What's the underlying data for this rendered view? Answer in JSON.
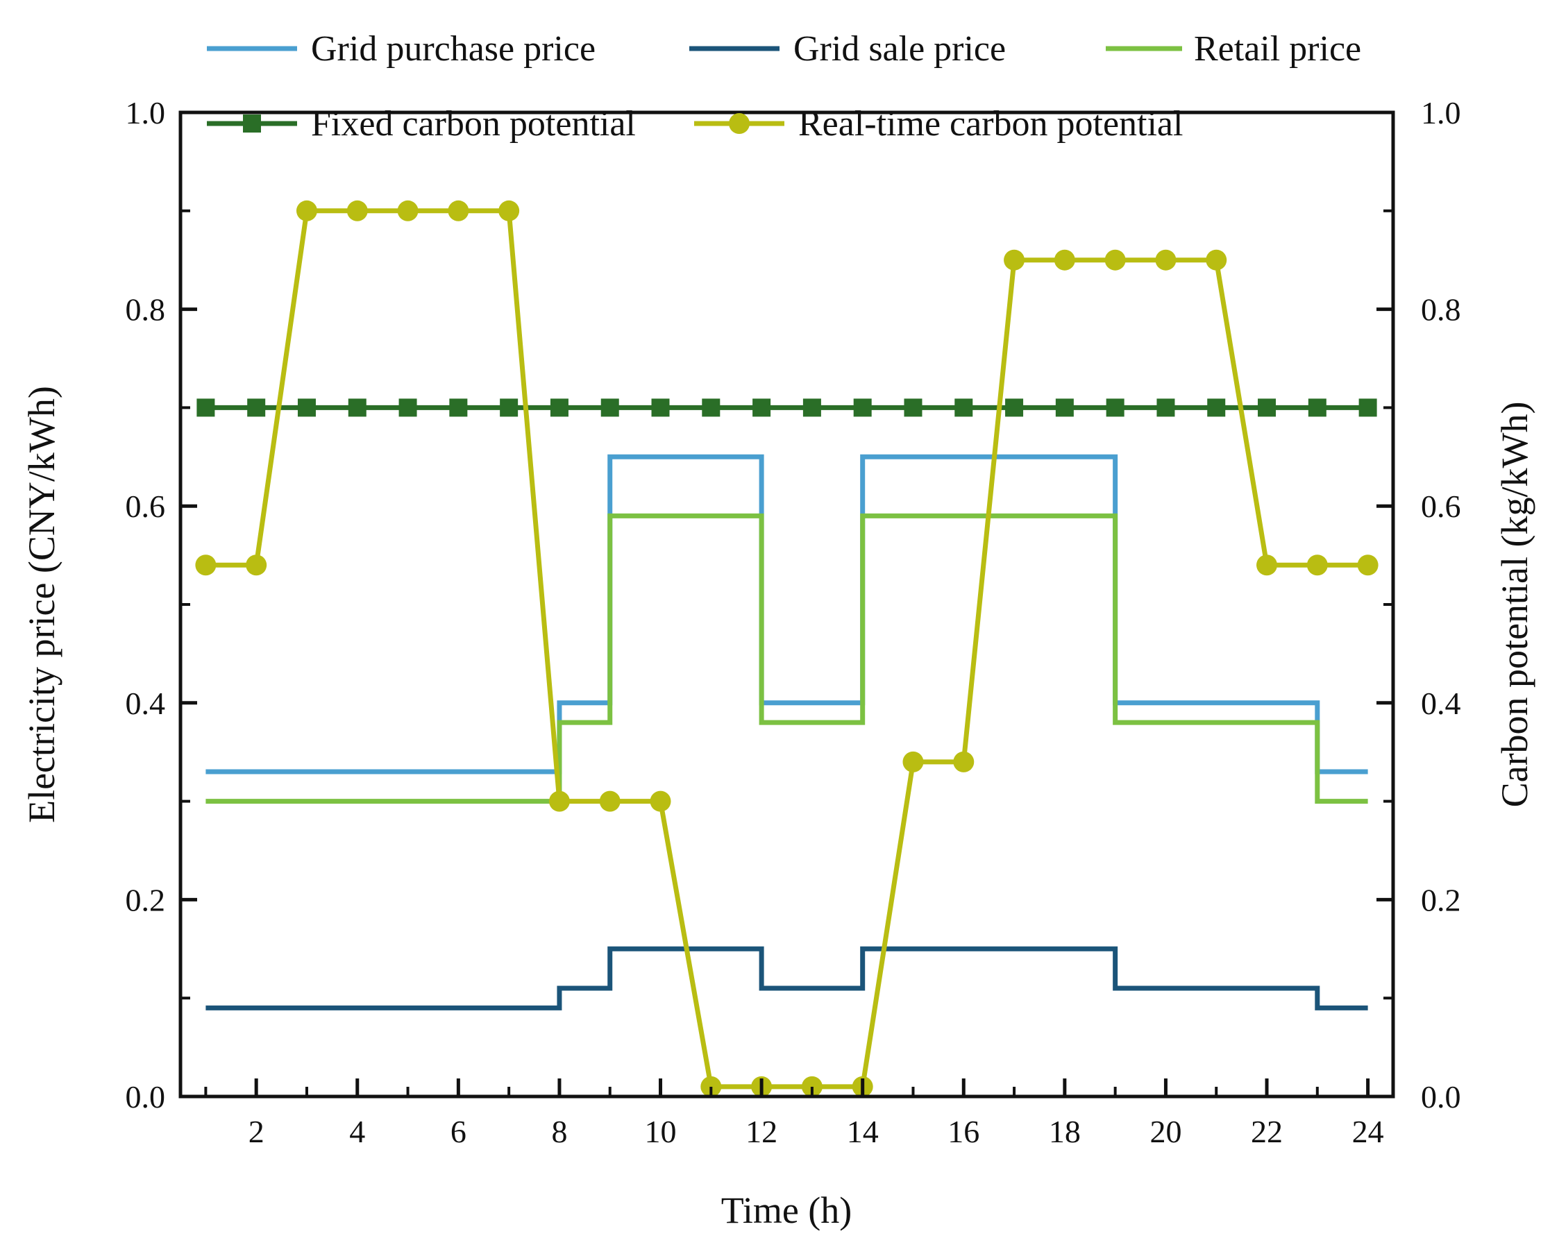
{
  "chart_data": {
    "type": "line",
    "title": "",
    "xlabel": "Time (h)",
    "ylabel_left": "Electricity price (CNY/kWh)",
    "ylabel_right": "Carbon potential (kg/kWh)",
    "x": [
      1,
      2,
      3,
      4,
      5,
      6,
      7,
      8,
      9,
      10,
      11,
      12,
      13,
      14,
      15,
      16,
      17,
      18,
      19,
      20,
      21,
      22,
      23,
      24
    ],
    "xlim": [
      0.5,
      24.5
    ],
    "xticks": [
      2,
      4,
      6,
      8,
      10,
      12,
      14,
      16,
      18,
      20,
      22,
      24
    ],
    "ylim_left": [
      0.0,
      1.0
    ],
    "ylim_right": [
      0.0,
      1.0
    ],
    "yticks": [
      0.0,
      0.2,
      0.4,
      0.6,
      0.8,
      1.0
    ],
    "ytick_labels": [
      "0.0",
      "0.2",
      "0.4",
      "0.6",
      "0.8",
      "1.0"
    ],
    "legend_position": "top",
    "series": [
      {
        "name": "Grid purchase price",
        "axis": "left",
        "style": "step",
        "marker": "none",
        "color": "#4a9fd0",
        "values": [
          0.33,
          0.33,
          0.33,
          0.33,
          0.33,
          0.33,
          0.33,
          0.4,
          0.65,
          0.65,
          0.65,
          0.4,
          0.4,
          0.65,
          0.65,
          0.65,
          0.65,
          0.65,
          0.4,
          0.4,
          0.4,
          0.4,
          0.33,
          0.33
        ]
      },
      {
        "name": "Grid sale price",
        "axis": "left",
        "style": "step",
        "marker": "none",
        "color": "#1b5479",
        "values": [
          0.09,
          0.09,
          0.09,
          0.09,
          0.09,
          0.09,
          0.09,
          0.11,
          0.15,
          0.15,
          0.15,
          0.11,
          0.11,
          0.15,
          0.15,
          0.15,
          0.15,
          0.15,
          0.11,
          0.11,
          0.11,
          0.11,
          0.09,
          0.09
        ]
      },
      {
        "name": "Retail price",
        "axis": "left",
        "style": "step",
        "marker": "none",
        "color": "#7cc142",
        "values": [
          0.3,
          0.3,
          0.3,
          0.3,
          0.3,
          0.3,
          0.3,
          0.38,
          0.59,
          0.59,
          0.59,
          0.38,
          0.38,
          0.59,
          0.59,
          0.59,
          0.59,
          0.59,
          0.38,
          0.38,
          0.38,
          0.38,
          0.3,
          0.3
        ]
      },
      {
        "name": "Fixed carbon potential",
        "axis": "right",
        "style": "line",
        "marker": "square",
        "color": "#2a6e27",
        "values": [
          0.7,
          0.7,
          0.7,
          0.7,
          0.7,
          0.7,
          0.7,
          0.7,
          0.7,
          0.7,
          0.7,
          0.7,
          0.7,
          0.7,
          0.7,
          0.7,
          0.7,
          0.7,
          0.7,
          0.7,
          0.7,
          0.7,
          0.7,
          0.7
        ]
      },
      {
        "name": "Real-time carbon potential",
        "axis": "right",
        "style": "line",
        "marker": "circle",
        "color": "#b9bd12",
        "values": [
          0.54,
          0.54,
          0.9,
          0.9,
          0.9,
          0.9,
          0.9,
          0.3,
          0.3,
          0.3,
          0.01,
          0.01,
          0.01,
          0.01,
          0.34,
          0.34,
          0.85,
          0.85,
          0.85,
          0.85,
          0.85,
          0.54,
          0.54,
          0.54
        ]
      }
    ]
  }
}
